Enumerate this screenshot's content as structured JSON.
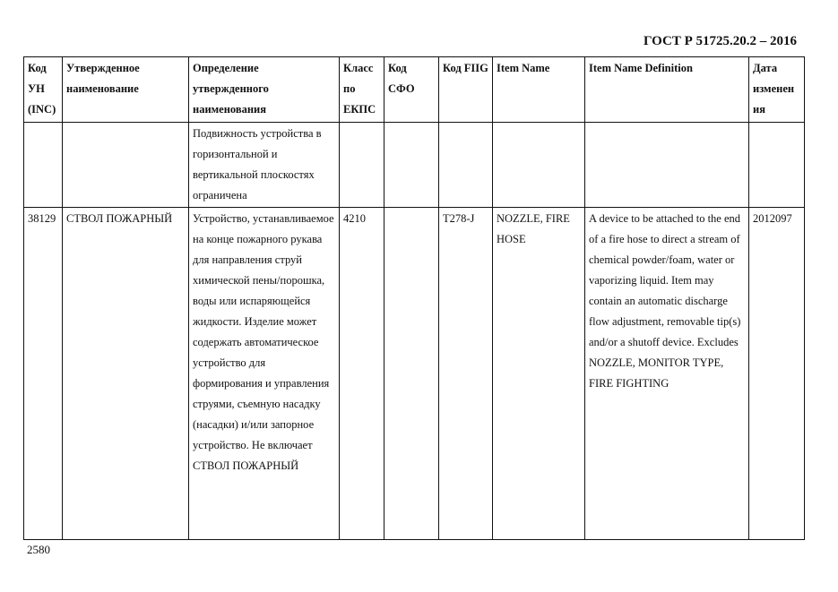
{
  "header": {
    "standard": "ГОСТ Р 51725.20.2 – 2016"
  },
  "table": {
    "columns": [
      "Код УН (INC)",
      "Утвержденное наименование",
      "Определение утвержденного наименования",
      "Класс по ЕКПС",
      "Код СФО",
      "Код FIIG",
      "Item Name",
      "Item Name Definition",
      "Дата изменения"
    ],
    "rows": [
      [
        "",
        "",
        "Подвижность устройства в горизонтальной и вертикальной плоскостях ограничена",
        "",
        "",
        "",
        "",
        "",
        ""
      ],
      [
        "38129",
        "СТВОЛ ПОЖАРНЫЙ",
        "Устройство, устанавливаемое на конце пожарного рукава для направления струй химической пены/порошка, воды или испаряющейся жидкости. Изделие может содержать автоматическое устройство для формирования и управления струями, съемную насадку (насадки) и/или запорное устройство. Не включает СТВОЛ ПОЖАРНЫЙ",
        "4210",
        "",
        "T278-J",
        "NOZZLE, FIRE HOSE",
        "A device to be attached to the end of a fire hose to direct a stream of chemical powder/foam, water or vaporizing liquid. Item may contain an automatic discharge flow adjustment, removable tip(s) and/or a shutoff device. Excludes NOZZLE, MONITOR TYPE, FIRE FIGHTING",
        "2012097"
      ]
    ]
  },
  "footer": {
    "page_number": "2580"
  }
}
